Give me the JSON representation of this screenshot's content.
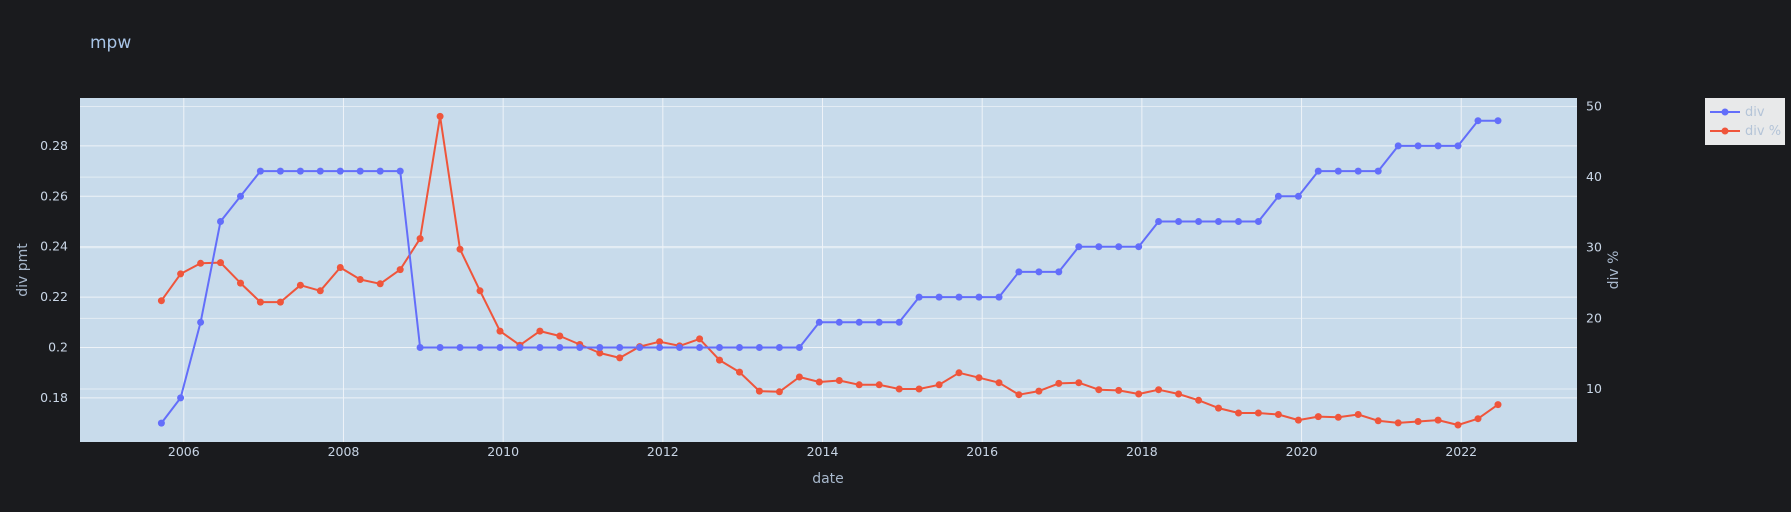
{
  "chart_data": {
    "type": "line",
    "title": "mpw",
    "xlabel": "date",
    "ylabel": "div pmt",
    "y2label": "div %",
    "xlim": [
      2004.7,
      2023.45
    ],
    "ylim": [
      0.1625,
      0.299
    ],
    "y2lim": [
      2.5,
      51.2
    ],
    "xticks": [
      2006,
      2008,
      2010,
      2012,
      2014,
      2016,
      2018,
      2020,
      2022
    ],
    "xtick_labels": [
      "2006",
      "2008",
      "2010",
      "2012",
      "2014",
      "2016",
      "2018",
      "2020",
      "2022"
    ],
    "yticks": [
      0.18,
      0.2,
      0.22,
      0.24,
      0.26,
      0.28
    ],
    "ytick_labels": [
      "0.18",
      "0.2",
      "0.22",
      "0.24",
      "0.26",
      "0.28"
    ],
    "y2ticks": [
      10,
      20,
      30,
      40,
      50
    ],
    "y2tick_labels": [
      "10",
      "20",
      "30",
      "40",
      "50"
    ],
    "grid": true,
    "legend_position": "top-right",
    "x": [
      2005.72,
      2005.96,
      2006.21,
      2006.46,
      2006.71,
      2006.96,
      2007.21,
      2007.46,
      2007.71,
      2007.96,
      2008.21,
      2008.46,
      2008.71,
      2008.96,
      2009.21,
      2009.46,
      2009.71,
      2009.96,
      2010.21,
      2010.46,
      2010.71,
      2010.96,
      2011.21,
      2011.46,
      2011.71,
      2011.96,
      2012.21,
      2012.46,
      2012.71,
      2012.96,
      2013.21,
      2013.46,
      2013.71,
      2013.96,
      2014.21,
      2014.46,
      2014.71,
      2014.96,
      2015.21,
      2015.46,
      2015.71,
      2015.96,
      2016.21,
      2016.46,
      2016.71,
      2016.96,
      2017.21,
      2017.46,
      2017.71,
      2017.96,
      2018.21,
      2018.46,
      2018.71,
      2018.96,
      2019.21,
      2019.46,
      2019.71,
      2019.96,
      2020.21,
      2020.46,
      2020.71,
      2020.96,
      2021.21,
      2021.46,
      2021.71,
      2021.96,
      2022.21,
      2022.46
    ],
    "series": [
      {
        "name": "div",
        "axis": "y",
        "color": "#636efa",
        "values": [
          0.17,
          0.18,
          0.21,
          0.25,
          0.26,
          0.27,
          0.27,
          0.27,
          0.27,
          0.27,
          0.27,
          0.27,
          0.27,
          0.2,
          0.2,
          0.2,
          0.2,
          0.2,
          0.2,
          0.2,
          0.2,
          0.2,
          0.2,
          0.2,
          0.2,
          0.2,
          0.2,
          0.2,
          0.2,
          0.2,
          0.2,
          0.2,
          0.2,
          0.21,
          0.21,
          0.21,
          0.21,
          0.21,
          0.22,
          0.22,
          0.22,
          0.22,
          0.22,
          0.23,
          0.23,
          0.23,
          0.24,
          0.24,
          0.24,
          0.24,
          0.25,
          0.25,
          0.25,
          0.25,
          0.25,
          0.25,
          0.26,
          0.26,
          0.27,
          0.27,
          0.27,
          0.27,
          0.28,
          0.28,
          0.28,
          0.28,
          0.29,
          0.29
        ]
      },
      {
        "name": "div %",
        "axis": "y2",
        "color": "#ef553b",
        "values": [
          22.5,
          26.3,
          27.8,
          27.9,
          25.0,
          22.3,
          22.3,
          24.7,
          23.9,
          27.2,
          25.5,
          24.9,
          26.9,
          31.3,
          48.6,
          29.8,
          23.9,
          18.2,
          16.2,
          18.2,
          17.5,
          16.3,
          15.1,
          14.4,
          16.0,
          16.7,
          16.1,
          17.1,
          14.1,
          12.4,
          9.7,
          9.6,
          11.7,
          11.0,
          11.2,
          10.6,
          10.6,
          10.0,
          10.0,
          10.6,
          12.3,
          11.6,
          10.9,
          9.2,
          9.7,
          10.8,
          10.9,
          9.9,
          9.8,
          9.3,
          9.9,
          9.3,
          8.4,
          7.3,
          6.6,
          6.6,
          6.4,
          5.6,
          6.1,
          6.0,
          6.4,
          5.5,
          5.2,
          5.4,
          5.6,
          4.9,
          5.8,
          7.8
        ]
      }
    ]
  }
}
